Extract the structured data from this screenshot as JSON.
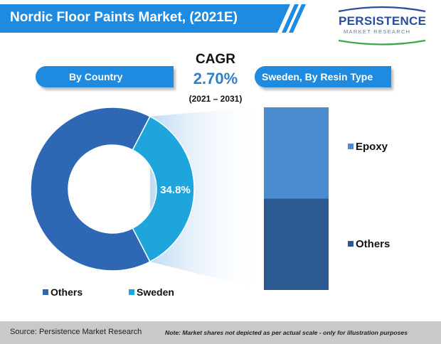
{
  "title": "Nordic Floor Paints Market, (2021E)",
  "logo": {
    "name": "PERSISTENCE",
    "tagline": "MARKET RESEARCH"
  },
  "cagr": {
    "label": "CAGR",
    "value": "2.70%",
    "period": "(2021 – 2031)"
  },
  "panels": {
    "left_title": "By Country",
    "right_title": "Sweden, By Resin Type"
  },
  "colors": {
    "others_dark": "#2e68b5",
    "sweden_cyan": "#1ea6dc",
    "epoxy": "#4a8cd0",
    "resin_others": "#2a5a8f",
    "banner": "#1e8be0"
  },
  "chart_data": [
    {
      "type": "pie",
      "subtype": "donut",
      "title": "By Country",
      "series": [
        {
          "name": "Others",
          "value": 65.2,
          "color": "#2e68b5"
        },
        {
          "name": "Sweden",
          "value": 34.8,
          "color": "#1ea6dc",
          "label": "34.8%"
        }
      ],
      "legend": [
        "Others",
        "Sweden"
      ],
      "legend_position": "bottom"
    },
    {
      "type": "bar",
      "subtype": "stacked-100",
      "title": "Sweden, By Resin Type",
      "series": [
        {
          "name": "Epoxy",
          "value": 50,
          "color": "#4a8cd0"
        },
        {
          "name": "Others",
          "value": 50,
          "color": "#2a5a8f"
        }
      ],
      "legend_position": "right"
    }
  ],
  "footer": {
    "source": "Source: Persistence Market Research",
    "note": "Note: Market shares not depicted as per actual scale - only for illustration purposes"
  }
}
